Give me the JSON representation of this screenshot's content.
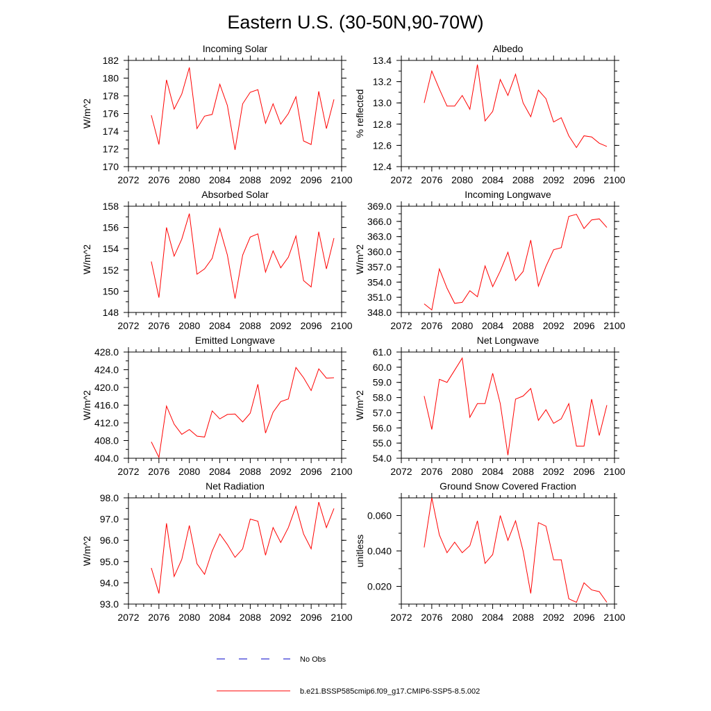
{
  "figure_title": "Eastern U.S. (30-50N,90-70W)",
  "colors": {
    "model": "#ff0000",
    "obs": "#0000c8",
    "axis": "#000000"
  },
  "legend": {
    "obs_label": "No Obs",
    "model_label": "b.e21.BSSP585cmip6.f09_g17.CMIP6-SSP5-8.5.002"
  },
  "chart_data": [
    {
      "type": "line",
      "title": "Incoming Solar",
      "xlabel": "",
      "ylabel": "W/m^2",
      "xlim": [
        2072,
        2100
      ],
      "ylim": [
        170,
        182
      ],
      "xticks": [
        "2072",
        "2076",
        "2080",
        "2084",
        "2088",
        "2092",
        "2096",
        "2100"
      ],
      "yticks": [
        "170",
        "172",
        "174",
        "176",
        "178",
        "180",
        "182"
      ],
      "x": [
        2075,
        2076,
        2077,
        2078,
        2079,
        2080,
        2081,
        2082,
        2083,
        2084,
        2085,
        2086,
        2087,
        2088,
        2089,
        2090,
        2091,
        2092,
        2093,
        2094,
        2095,
        2096,
        2097,
        2098,
        2099
      ],
      "series": [
        {
          "name": "b.e21.BSSP585cmip6.f09_g17.CMIP6-SSP5-8.5.002",
          "values": [
            175.8,
            172.5,
            179.8,
            176.5,
            178.2,
            181.2,
            174.3,
            175.7,
            175.9,
            179.3,
            176.9,
            171.9,
            177.1,
            178.4,
            178.7,
            174.9,
            177.1,
            174.8,
            176.0,
            177.9,
            172.9,
            172.5,
            178.5,
            174.3,
            177.6
          ]
        }
      ]
    },
    {
      "type": "line",
      "title": "Albedo",
      "xlabel": "",
      "ylabel": "% reflected",
      "xlim": [
        2072,
        2100
      ],
      "ylim": [
        12.4,
        13.4
      ],
      "xticks": [
        "2072",
        "2076",
        "2080",
        "2084",
        "2088",
        "2092",
        "2096",
        "2100"
      ],
      "yticks": [
        "12.4",
        "12.6",
        "12.8",
        "13.0",
        "13.2",
        "13.4"
      ],
      "x": [
        2075,
        2076,
        2077,
        2078,
        2079,
        2080,
        2081,
        2082,
        2083,
        2084,
        2085,
        2086,
        2087,
        2088,
        2089,
        2090,
        2091,
        2092,
        2093,
        2094,
        2095,
        2096,
        2097,
        2098,
        2099
      ],
      "series": [
        {
          "name": "b.e21.BSSP585cmip6.f09_g17.CMIP6-SSP5-8.5.002",
          "values": [
            13.0,
            13.3,
            13.13,
            12.97,
            12.97,
            13.07,
            12.94,
            13.36,
            12.83,
            12.92,
            13.22,
            13.07,
            13.27,
            13.0,
            12.87,
            13.12,
            13.04,
            12.82,
            12.86,
            12.69,
            12.58,
            12.69,
            12.68,
            12.62,
            12.59
          ]
        }
      ]
    },
    {
      "type": "line",
      "title": "Absorbed Solar",
      "xlabel": "",
      "ylabel": "W/m^2",
      "xlim": [
        2072,
        2100
      ],
      "ylim": [
        148,
        158
      ],
      "xticks": [
        "2072",
        "2076",
        "2080",
        "2084",
        "2088",
        "2092",
        "2096",
        "2100"
      ],
      "yticks": [
        "148",
        "150",
        "152",
        "154",
        "156",
        "158"
      ],
      "x": [
        2075,
        2076,
        2077,
        2078,
        2079,
        2080,
        2081,
        2082,
        2083,
        2084,
        2085,
        2086,
        2087,
        2088,
        2089,
        2090,
        2091,
        2092,
        2093,
        2094,
        2095,
        2096,
        2097,
        2098,
        2099
      ],
      "series": [
        {
          "name": "b.e21.BSSP585cmip6.f09_g17.CMIP6-SSP5-8.5.002",
          "values": [
            152.8,
            149.4,
            156.0,
            153.3,
            154.9,
            157.3,
            151.6,
            152.1,
            153.1,
            155.9,
            153.4,
            149.3,
            153.4,
            155.1,
            155.4,
            151.8,
            153.8,
            152.2,
            153.2,
            155.2,
            151.0,
            150.4,
            155.6,
            152.1,
            155.0
          ]
        }
      ]
    },
    {
      "type": "line",
      "title": "Incoming Longwave",
      "xlabel": "",
      "ylabel": "W/m^2",
      "xlim": [
        2072,
        2100
      ],
      "ylim": [
        348.0,
        369.0
      ],
      "xticks": [
        "2072",
        "2076",
        "2080",
        "2084",
        "2088",
        "2092",
        "2096",
        "2100"
      ],
      "yticks": [
        "348.0",
        "351.0",
        "354.0",
        "357.0",
        "360.0",
        "363.0",
        "366.0",
        "369.0"
      ],
      "x": [
        2075,
        2076,
        2077,
        2078,
        2079,
        2080,
        2081,
        2082,
        2083,
        2084,
        2085,
        2086,
        2087,
        2088,
        2089,
        2090,
        2091,
        2092,
        2093,
        2094,
        2095,
        2096,
        2097,
        2098,
        2099
      ],
      "series": [
        {
          "name": "b.e21.BSSP585cmip6.f09_g17.CMIP6-SSP5-8.5.002",
          "values": [
            349.7,
            348.5,
            356.6,
            352.8,
            349.8,
            350.0,
            352.3,
            351.1,
            357.2,
            353.1,
            356.2,
            359.9,
            354.3,
            356.1,
            362.3,
            353.2,
            357.1,
            360.4,
            360.8,
            367.0,
            367.4,
            364.6,
            366.3,
            366.5,
            364.8
          ]
        }
      ]
    },
    {
      "type": "line",
      "title": "Emitted Longwave",
      "xlabel": "",
      "ylabel": "W/m^2",
      "xlim": [
        2072,
        2100
      ],
      "ylim": [
        404.0,
        428.0
      ],
      "xticks": [
        "2072",
        "2076",
        "2080",
        "2084",
        "2088",
        "2092",
        "2096",
        "2100"
      ],
      "yticks": [
        "404.0",
        "408.0",
        "412.0",
        "416.0",
        "420.0",
        "424.0",
        "428.0"
      ],
      "x": [
        2075,
        2076,
        2077,
        2078,
        2079,
        2080,
        2081,
        2082,
        2083,
        2084,
        2085,
        2086,
        2087,
        2088,
        2089,
        2090,
        2091,
        2092,
        2093,
        2094,
        2095,
        2096,
        2097,
        2098,
        2099
      ],
      "series": [
        {
          "name": "b.e21.BSSP585cmip6.f09_g17.CMIP6-SSP5-8.5.002",
          "values": [
            407.7,
            404.2,
            415.8,
            411.7,
            409.4,
            410.5,
            409.0,
            408.8,
            414.7,
            412.9,
            413.9,
            414.0,
            412.2,
            414.2,
            420.7,
            409.7,
            414.4,
            416.8,
            417.4,
            424.5,
            422.2,
            419.3,
            424.2,
            422.1,
            422.2
          ]
        }
      ]
    },
    {
      "type": "line",
      "title": "Net Longwave",
      "xlabel": "",
      "ylabel": "W/m^2",
      "xlim": [
        2072,
        2100
      ],
      "ylim": [
        54.0,
        61.0
      ],
      "xticks": [
        "2072",
        "2076",
        "2080",
        "2084",
        "2088",
        "2092",
        "2096",
        "2100"
      ],
      "yticks": [
        "54.0",
        "55.0",
        "56.0",
        "57.0",
        "58.0",
        "59.0",
        "60.0",
        "61.0"
      ],
      "x": [
        2075,
        2076,
        2077,
        2078,
        2079,
        2080,
        2081,
        2082,
        2083,
        2084,
        2085,
        2086,
        2087,
        2088,
        2089,
        2090,
        2091,
        2092,
        2093,
        2094,
        2095,
        2096,
        2097,
        2098,
        2099
      ],
      "series": [
        {
          "name": "b.e21.BSSP585cmip6.f09_g17.CMIP6-SSP5-8.5.002",
          "values": [
            58.1,
            55.9,
            59.2,
            59.0,
            59.8,
            60.6,
            56.7,
            57.6,
            57.6,
            59.6,
            57.6,
            54.2,
            57.9,
            58.1,
            58.6,
            56.5,
            57.2,
            56.3,
            56.6,
            57.6,
            54.8,
            54.8,
            57.9,
            55.5,
            57.5
          ]
        }
      ]
    },
    {
      "type": "line",
      "title": "Net Radiation",
      "xlabel": "",
      "ylabel": "W/m^2",
      "xlim": [
        2072,
        2100
      ],
      "ylim": [
        93.0,
        98.0
      ],
      "xticks": [
        "2072",
        "2076",
        "2080",
        "2084",
        "2088",
        "2092",
        "2096",
        "2100"
      ],
      "yticks": [
        "93.0",
        "94.0",
        "95.0",
        "96.0",
        "97.0",
        "98.0"
      ],
      "x": [
        2075,
        2076,
        2077,
        2078,
        2079,
        2080,
        2081,
        2082,
        2083,
        2084,
        2085,
        2086,
        2087,
        2088,
        2089,
        2090,
        2091,
        2092,
        2093,
        2094,
        2095,
        2096,
        2097,
        2098,
        2099
      ],
      "series": [
        {
          "name": "b.e21.BSSP585cmip6.f09_g17.CMIP6-SSP5-8.5.002",
          "values": [
            94.7,
            93.5,
            96.8,
            94.3,
            95.1,
            96.7,
            94.9,
            94.4,
            95.5,
            96.3,
            95.8,
            95.2,
            95.6,
            97.0,
            96.9,
            95.3,
            96.6,
            95.9,
            96.6,
            97.6,
            96.3,
            95.6,
            97.8,
            96.6,
            97.5
          ]
        }
      ]
    },
    {
      "type": "line",
      "title": "Ground Snow Covered Fraction",
      "xlabel": "",
      "ylabel": "unitless",
      "xlim": [
        2072,
        2100
      ],
      "ylim": [
        0.01,
        0.07
      ],
      "xticks": [
        "2072",
        "2076",
        "2080",
        "2084",
        "2088",
        "2092",
        "2096",
        "2100"
      ],
      "yticks": [
        "0.020",
        "0.040",
        "0.060"
      ],
      "ytick_values": [
        0.02,
        0.04,
        0.06
      ],
      "x": [
        2075,
        2076,
        2077,
        2078,
        2079,
        2080,
        2081,
        2082,
        2083,
        2084,
        2085,
        2086,
        2087,
        2088,
        2089,
        2090,
        2091,
        2092,
        2093,
        2094,
        2095,
        2096,
        2097,
        2098,
        2099
      ],
      "series": [
        {
          "name": "b.e21.BSSP585cmip6.f09_g17.CMIP6-SSP5-8.5.002",
          "values": [
            0.042,
            0.07,
            0.049,
            0.039,
            0.045,
            0.039,
            0.043,
            0.057,
            0.033,
            0.038,
            0.06,
            0.046,
            0.057,
            0.04,
            0.016,
            0.056,
            0.054,
            0.035,
            0.035,
            0.013,
            0.011,
            0.022,
            0.018,
            0.017,
            0.011
          ]
        }
      ]
    }
  ]
}
